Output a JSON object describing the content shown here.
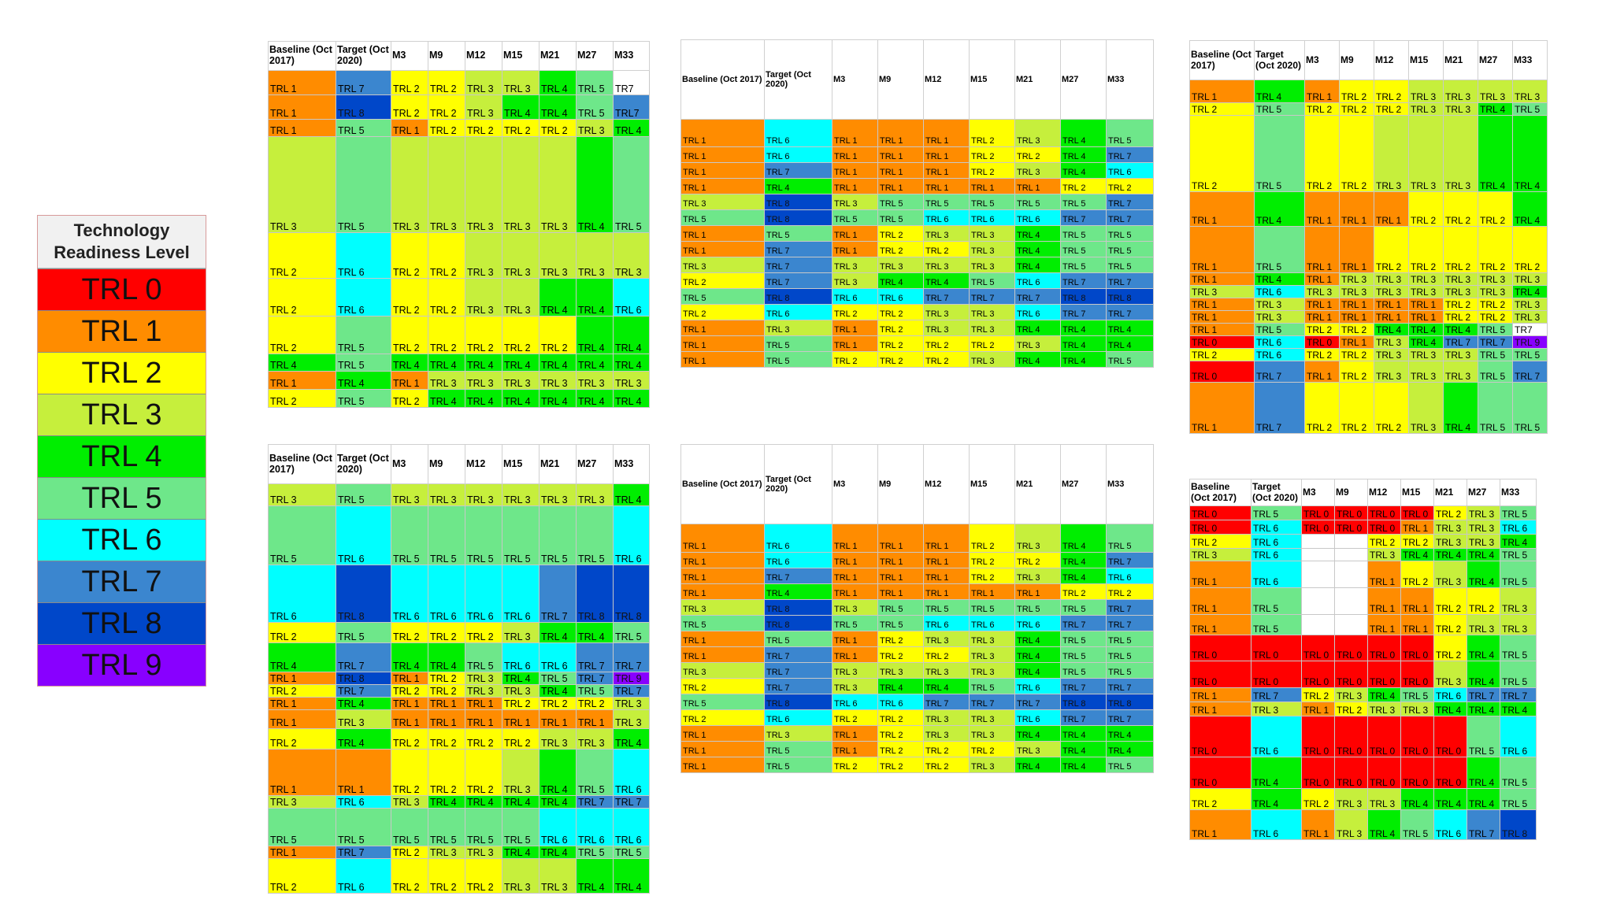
{
  "colors": {
    "TRL 0": "#ff0000",
    "TRL 1": "#ff8c00",
    "TRL 2": "#ffff00",
    "TRL 3": "#c6ef3c",
    "TRL 4": "#00ee00",
    "TRL 5": "#6ee78a",
    "TRL 6": "#00ffff",
    "TRL 7": "#3b86cf",
    "TRL 8": "#0047c9",
    "TRL 9": "#8800ff",
    "TRL7": "#3b86cf",
    "": "#ffffff"
  },
  "legend": {
    "title": "Technology Readiness Level",
    "items": [
      "TRL 0",
      "TRL 1",
      "TRL 2",
      "TRL 3",
      "TRL 4",
      "TRL 5",
      "TRL 6",
      "TRL 7",
      "TRL 8",
      "TRL 9"
    ]
  },
  "tables": [
    {
      "id": "t1",
      "headers": [
        "Baseline (Oct 2017)",
        "Target (Oct 2020)",
        "M3",
        "M9",
        "M12",
        "M15",
        "M21",
        "M27",
        "M33"
      ],
      "rows": [
        [
          "TRL 1",
          "TRL 7",
          "TRL 2",
          "TRL 2",
          "TRL 3",
          "TRL 3",
          "TRL 4",
          "TRL 5",
          "TR7"
        ],
        [
          "TRL 1",
          "TRL 8",
          "TRL 2",
          "TRL 2",
          "TRL 3",
          "TRL 4",
          "TRL 4",
          "TRL 5",
          "TRL7"
        ],
        [
          "TRL 1",
          "TRL 5",
          "TRL 1",
          "TRL 2",
          "TRL 2",
          "TRL 2",
          "TRL 2",
          "TRL 3",
          "TRL 4"
        ],
        [
          "TRL 3",
          "TRL 5",
          "TRL 3",
          "TRL 3",
          "TRL 3",
          "TRL 3",
          "TRL 3",
          "TRL 4",
          "TRL 5"
        ],
        [
          "TRL 2",
          "TRL 6",
          "TRL 2",
          "TRL 2",
          "TRL 3",
          "TRL 3",
          "TRL 3",
          "TRL 3",
          "TRL 3"
        ],
        [
          "TRL 2",
          "TRL 6",
          "TRL 2",
          "TRL 2",
          "TRL 3",
          "TRL 3",
          "TRL 4",
          "TRL 4",
          "TRL 6"
        ],
        [
          "TRL 2",
          "TRL 5",
          "TRL 2",
          "TRL 2",
          "TRL 2",
          "TRL 2",
          "TRL 2",
          "TRL 4",
          "TRL 4"
        ],
        [
          "TRL 4",
          "TRL 5",
          "TRL 4",
          "TRL 4",
          "TRL 4",
          "TRL 4",
          "TRL 4",
          "TRL 4",
          "TRL 4"
        ],
        [
          "TRL 1",
          "TRL 4",
          "TRL 1",
          "TRL 3",
          "TRL 3",
          "TRL 3",
          "TRL 3",
          "TRL 3",
          "TRL 3"
        ],
        [
          "TRL 2",
          "TRL 5",
          "TRL 2",
          "TRL 4",
          "TRL 4",
          "TRL 4",
          "TRL 4",
          "TRL 4",
          "TRL 4"
        ]
      ]
    },
    {
      "id": "t2",
      "headers": [
        "Baseline (Oct 2017)",
        "Target (Oct 2020)",
        "M3",
        "M9",
        "M12",
        "M15",
        "M21",
        "M27",
        "M33"
      ],
      "rows": [
        [
          "TRL 1",
          "TRL 6",
          "TRL 1",
          "TRL 1",
          "TRL 1",
          "TRL 2",
          "TRL 3",
          "TRL 4",
          "TRL 5"
        ],
        [
          "TRL 1",
          "TRL 6",
          "TRL 1",
          "TRL 1",
          "TRL 1",
          "TRL 2",
          "TRL 2",
          "TRL 4",
          "TRL 7"
        ],
        [
          "TRL 1",
          "TRL 7",
          "TRL 1",
          "TRL 1",
          "TRL 1",
          "TRL 2",
          "TRL 3",
          "TRL 4",
          "TRL 6"
        ],
        [
          "TRL 1",
          "TRL 4",
          "TRL 1",
          "TRL 1",
          "TRL 1",
          "TRL 1",
          "TRL 1",
          "TRL 2",
          "TRL 2"
        ],
        [
          "TRL 3",
          "TRL 8",
          "TRL 3",
          "TRL 5",
          "TRL 5",
          "TRL 5",
          "TRL 5",
          "TRL 5",
          "TRL 7"
        ],
        [
          "TRL 5",
          "TRL 8",
          "TRL 5",
          "TRL 5",
          "TRL 6",
          "TRL 6",
          "TRL 6",
          "TRL 7",
          "TRL 7"
        ],
        [
          "TRL 1",
          "TRL 5",
          "TRL 1",
          "TRL 2",
          "TRL 3",
          "TRL 3",
          "TRL 4",
          "TRL 5",
          "TRL 5"
        ],
        [
          "TRL 1",
          "TRL 7",
          "TRL 1",
          "TRL 2",
          "TRL 2",
          "TRL 3",
          "TRL 4",
          "TRL 5",
          "TRL 5"
        ],
        [
          "TRL 3",
          "TRL 7",
          "TRL 3",
          "TRL 3",
          "TRL 3",
          "TRL 3",
          "TRL 4",
          "TRL 5",
          "TRL 5"
        ],
        [
          "TRL 2",
          "TRL 7",
          "TRL 3",
          "TRL 4",
          "TRL 4",
          "TRL 5",
          "TRL 6",
          "TRL 7",
          "TRL 7"
        ],
        [
          "TRL 5",
          "TRL 8",
          "TRL 6",
          "TRL 6",
          "TRL 7",
          "TRL 7",
          "TRL 7",
          "TRL 8",
          "TRL 8"
        ],
        [
          "TRL 2",
          "TRL 6",
          "TRL 2",
          "TRL 2",
          "TRL 3",
          "TRL 3",
          "TRL 6",
          "TRL 7",
          "TRL 7"
        ],
        [
          "TRL 1",
          "TRL 3",
          "TRL 1",
          "TRL 2",
          "TRL 3",
          "TRL 3",
          "TRL 4",
          "TRL 4",
          "TRL 4"
        ],
        [
          "TRL 1",
          "TRL 5",
          "TRL 1",
          "TRL 2",
          "TRL 2",
          "TRL 2",
          "TRL 3",
          "TRL 4",
          "TRL 4"
        ],
        [
          "TRL 1",
          "TRL 5",
          "TRL 2",
          "TRL 2",
          "TRL 2",
          "TRL 3",
          "TRL 4",
          "TRL 4",
          "TRL 5"
        ]
      ]
    },
    {
      "id": "t3",
      "headers": [
        "Baseline (Oct 2017)",
        "Target (Oct 2020)",
        "M3",
        "M9",
        "M12",
        "M15",
        "M21",
        "M27",
        "M33"
      ],
      "rows": [
        [
          "TRL 1",
          "TRL 4",
          "TRL 1",
          "TRL 2",
          "TRL 2",
          "TRL 3",
          "TRL 3",
          "TRL 3",
          "TRL 3"
        ],
        [
          "TRL 2",
          "TRL 5",
          "TRL 2",
          "TRL 2",
          "TRL 2",
          "TRL 3",
          "TRL 3",
          "TRL 4",
          "TRL 5"
        ],
        [
          "TRL 2",
          "TRL 5",
          "TRL 2",
          "TRL 2",
          "TRL 3",
          "TRL 3",
          "TRL 3",
          "TRL 4",
          "TRL 4"
        ],
        [
          "TRL 1",
          "TRL 4",
          "TRL 1",
          "TRL 1",
          "TRL 1",
          "TRL 2",
          "TRL 2",
          "TRL 2",
          "TRL 4"
        ],
        [
          "TRL 1",
          "TRL 5",
          "TRL 1",
          "TRL 1",
          "TRL 2",
          "TRL 2",
          "TRL 2",
          "TRL 2",
          "TRL 2"
        ],
        [
          "TRL 1",
          "TRL 4",
          "TRL 1",
          "TRL 3",
          "TRL 3",
          "TRL 3",
          "TRL 3",
          "TRL 3",
          "TRL 3"
        ],
        [
          "TRL 3",
          "TRL 6",
          "TRL 3",
          "TRL 3",
          "TRL 3",
          "TRL 3",
          "TRL 3",
          "TRL 3",
          "TRL 4"
        ],
        [
          "TRL 1",
          "TRL 3",
          "TRL 1",
          "TRL 1",
          "TRL 1",
          "TRL 1",
          "TRL 2",
          "TRL 2",
          "TRL 3"
        ],
        [
          "TRL 1",
          "TRL 3",
          "TRL 1",
          "TRL 1",
          "TRL 1",
          "TRL 1",
          "TRL 2",
          "TRL 2",
          "TRL 3"
        ],
        [
          "TRL 1",
          "TRL 5",
          "TRL 2",
          "TRL 2",
          "TRL 4",
          "TRL 4",
          "TRL 4",
          "TRL 5",
          "TR7"
        ],
        [
          "TRL 0",
          "TRL 6",
          "TRL 0",
          "TRL 1",
          "TRL 3",
          "TRL 4",
          "TRL 7",
          "TRL 7",
          "TRL 9"
        ],
        [
          "TRL 2",
          "TRL 6",
          "TRL 2",
          "TRL 2",
          "TRL 3",
          "TRL 3",
          "TRL 3",
          "TRL 5",
          "TRL 5"
        ],
        [
          "TRL 0",
          "TRL 7",
          "TRL 1",
          "TRL 2",
          "TRL 3",
          "TRL 3",
          "TRL 3",
          "TRL 5",
          "TRL 7"
        ],
        [
          "TRL 1",
          "TRL 7",
          "TRL 2",
          "TRL 2",
          "TRL 2",
          "TRL 3",
          "TRL 4",
          "TRL 5",
          "TRL 5"
        ]
      ]
    },
    {
      "id": "t4",
      "headers": [
        "Baseline (Oct 2017)",
        "Target (Oct 2020)",
        "M3",
        "M9",
        "M12",
        "M15",
        "M21",
        "M27",
        "M33"
      ],
      "rows": [
        [
          "TRL 3",
          "TRL 5",
          "TRL 3",
          "TRL 3",
          "TRL 3",
          "TRL 3",
          "TRL 3",
          "TRL 3",
          "TRL 4"
        ],
        [
          "TRL 5",
          "TRL 6",
          "TRL 5",
          "TRL 5",
          "TRL 5",
          "TRL 5",
          "TRL 5",
          "TRL 5",
          "TRL 6"
        ],
        [
          "TRL 6",
          "TRL 8",
          "TRL 6",
          "TRL 6",
          "TRL 6",
          "TRL 6",
          "TRL 7",
          "TRL 8",
          "TRL 8"
        ],
        [
          "TRL 2",
          "TRL 5",
          "TRL 2",
          "TRL 2",
          "TRL 2",
          "TRL 3",
          "TRL 4",
          "TRL 4",
          "TRL 5"
        ],
        [
          "TRL 4",
          "TRL 7",
          "TRL 4",
          "TRL 4",
          "TRL 5",
          "TRL 6",
          "TRL 6",
          "TRL 7",
          "TRL 7"
        ],
        [
          "TRL 1",
          "TRL 8",
          "TRL 1",
          "TRL 2",
          "TRL 3",
          "TRL 4",
          "TRL 5",
          "TRL 7",
          "TRL 9"
        ],
        [
          "TRL 2",
          "TRL 7",
          "TRL 2",
          "TRL 2",
          "TRL 3",
          "TRL 3",
          "TRL 4",
          "TRL 5",
          "TRL 7"
        ],
        [
          "TRL 1",
          "TRL 4",
          "TRL 1",
          "TRL 1",
          "TRL 1",
          "TRL 2",
          "TRL 2",
          "TRL 2",
          "TRL 3"
        ],
        [
          "TRL 1",
          "TRL 3",
          "TRL 1",
          "TRL 1",
          "TRL 1",
          "TRL 1",
          "TRL 1",
          "TRL 1",
          "TRL 3"
        ],
        [
          "TRL 2",
          "TRL 4",
          "TRL 2",
          "TRL 2",
          "TRL 2",
          "TRL 2",
          "TRL 3",
          "TRL 3",
          "TRL 4"
        ],
        [
          "TRL 1",
          "TRL 1",
          "TRL 2",
          "TRL 2",
          "TRL 2",
          "TRL 3",
          "TRL 4",
          "TRL 5",
          "TRL 6"
        ],
        [
          "TRL 3",
          "TRL 6",
          "TRL 3",
          "TRL 4",
          "TRL 4",
          "TRL 4",
          "TRL 4",
          "TRL 7",
          "TRL 7"
        ],
        [
          "TRL 5",
          "TRL 5",
          "TRL 5",
          "TRL 5",
          "TRL 5",
          "TRL 5",
          "TRL 6",
          "TRL 6",
          "TRL 6"
        ],
        [
          "TRL 1",
          "TRL 7",
          "TRL 2",
          "TRL 3",
          "TRL 3",
          "TRL 4",
          "TRL 4",
          "TRL 5",
          "TRL 5"
        ],
        [
          "TRL 2",
          "TRL 6",
          "TRL 2",
          "TRL 2",
          "TRL 2",
          "TRL 3",
          "TRL 3",
          "TRL 4",
          "TRL 4"
        ]
      ]
    },
    {
      "id": "t5",
      "headers": [
        "Baseline (Oct 2017)",
        "Target (Oct 2020)",
        "M3",
        "M9",
        "M12",
        "M15",
        "M21",
        "M27",
        "M33"
      ],
      "rows": [
        [
          "TRL 1",
          "TRL 6",
          "TRL 1",
          "TRL 1",
          "TRL 1",
          "TRL 2",
          "TRL 3",
          "TRL 4",
          "TRL 5"
        ],
        [
          "TRL 1",
          "TRL 6",
          "TRL 1",
          "TRL 1",
          "TRL 1",
          "TRL 2",
          "TRL 2",
          "TRL 4",
          "TRL 7"
        ],
        [
          "TRL 1",
          "TRL 7",
          "TRL 1",
          "TRL 1",
          "TRL 1",
          "TRL 2",
          "TRL 3",
          "TRL 4",
          "TRL 6"
        ],
        [
          "TRL 1",
          "TRL 4",
          "TRL 1",
          "TRL 1",
          "TRL 1",
          "TRL 1",
          "TRL 1",
          "TRL 2",
          "TRL 2"
        ],
        [
          "TRL 3",
          "TRL 8",
          "TRL 3",
          "TRL 5",
          "TRL 5",
          "TRL 5",
          "TRL 5",
          "TRL 5",
          "TRL 7"
        ],
        [
          "TRL 5",
          "TRL 8",
          "TRL 5",
          "TRL 5",
          "TRL 6",
          "TRL 6",
          "TRL 6",
          "TRL 7",
          "TRL 7"
        ],
        [
          "TRL 1",
          "TRL 5",
          "TRL 1",
          "TRL 2",
          "TRL 3",
          "TRL 3",
          "TRL 4",
          "TRL 5",
          "TRL 5"
        ],
        [
          "TRL 1",
          "TRL 7",
          "TRL 1",
          "TRL 2",
          "TRL 2",
          "TRL 3",
          "TRL 4",
          "TRL 5",
          "TRL 5"
        ],
        [
          "TRL 3",
          "TRL 7",
          "TRL 3",
          "TRL 3",
          "TRL 3",
          "TRL 3",
          "TRL 4",
          "TRL 5",
          "TRL 5"
        ],
        [
          "TRL 2",
          "TRL 7",
          "TRL 3",
          "TRL 4",
          "TRL 4",
          "TRL 5",
          "TRL 6",
          "TRL 7",
          "TRL 7"
        ],
        [
          "TRL 5",
          "TRL 8",
          "TRL 6",
          "TRL 6",
          "TRL 7",
          "TRL 7",
          "TRL 7",
          "TRL 8",
          "TRL 8"
        ],
        [
          "TRL 2",
          "TRL 6",
          "TRL 2",
          "TRL 2",
          "TRL 3",
          "TRL 3",
          "TRL 6",
          "TRL 7",
          "TRL 7"
        ],
        [
          "TRL 1",
          "TRL 3",
          "TRL 1",
          "TRL 2",
          "TRL 3",
          "TRL 3",
          "TRL 4",
          "TRL 4",
          "TRL 4"
        ],
        [
          "TRL 1",
          "TRL 5",
          "TRL 1",
          "TRL 2",
          "TRL 2",
          "TRL 2",
          "TRL 3",
          "TRL 4",
          "TRL 4"
        ],
        [
          "TRL 1",
          "TRL 5",
          "TRL 2",
          "TRL 2",
          "TRL 2",
          "TRL 3",
          "TRL 4",
          "TRL 4",
          "TRL 5"
        ]
      ]
    },
    {
      "id": "t6",
      "headers": [
        "Baseline (Oct 2017)",
        "Target (Oct 2020)",
        "M3",
        "M9",
        "M12",
        "M15",
        "M21",
        "M27",
        "M33"
      ],
      "rows": [
        [
          "TRL 0",
          "TRL 5",
          "TRL 0",
          "TRL 0",
          "TRL 0",
          "TRL 0",
          "TRL 2",
          "TRL 3",
          "TRL 5"
        ],
        [
          "TRL 0",
          "TRL 6",
          "TRL 0",
          "TRL 0",
          "TRL 0",
          "TRL 1",
          "TRL 3",
          "TRL 3",
          "TRL 6"
        ],
        [
          "TRL 2",
          "TRL 6",
          "",
          "",
          "TRL 2",
          "TRL 2",
          "TRL 3",
          "TRL 3",
          "TRL 4"
        ],
        [
          "TRL 3",
          "TRL 6",
          "",
          "",
          "TRL 3",
          "TRL 4",
          "TRL 4",
          "TRL 4",
          "TRL 5"
        ],
        [
          "TRL 1",
          "TRL 6",
          "",
          "",
          "TRL 1",
          "TRL 2",
          "TRL 3",
          "TRL 4",
          "TRL 5"
        ],
        [
          "TRL 1",
          "TRL 5",
          "",
          "",
          "TRL 1",
          "TRL 1",
          "TRL 2",
          "TRL 2",
          "TRL 3"
        ],
        [
          "TRL 1",
          "TRL 5",
          "",
          "",
          "TRL 1",
          "TRL 1",
          "TRL 2",
          "TRL 3",
          "TRL 3"
        ],
        [
          "TRL 0",
          "TRL 0",
          "TRL 0",
          "TRL 0",
          "TRL 0",
          "TRL 0",
          "TRL 2",
          "TRL 4",
          "TRL 5"
        ],
        [
          "TRL 0",
          "TRL 0",
          "TRL 0",
          "TRL 0",
          "TRL 0",
          "TRL 0",
          "TRL 3",
          "TRL 4",
          "TRL 5"
        ],
        [
          "TRL 1",
          "TRL 7",
          "TRL 2",
          "TRL 3",
          "TRL 4",
          "TRL 5",
          "TRL 6",
          "TRL 7",
          "TRL 7"
        ],
        [
          "TRL 1",
          "TRL 3",
          "TRL 1",
          "TRL 2",
          "TRL 3",
          "TRL 3",
          "TRL 4",
          "TRL 4",
          "TRL 4"
        ],
        [
          "TRL 0",
          "TRL 6",
          "TRL 0",
          "TRL 0",
          "TRL 0",
          "TRL 0",
          "TRL 0",
          "TRL 5",
          "TRL 6"
        ],
        [
          "TRL 0",
          "TRL 4",
          "TRL 0",
          "TRL 0",
          "TRL 0",
          "TRL 0",
          "TRL 0",
          "TRL 4",
          "TRL 5"
        ],
        [
          "TRL 2",
          "TRL 4",
          "TRL 2",
          "TRL 3",
          "TRL 3",
          "TRL 4",
          "TRL 4",
          "TRL 4",
          "TRL 5"
        ],
        [
          "TRL 1",
          "TRL 6",
          "TRL 1",
          "TRL 3",
          "TRL 4",
          "TRL 5",
          "TRL 6",
          "TRL 7",
          "TRL 8"
        ]
      ]
    }
  ]
}
